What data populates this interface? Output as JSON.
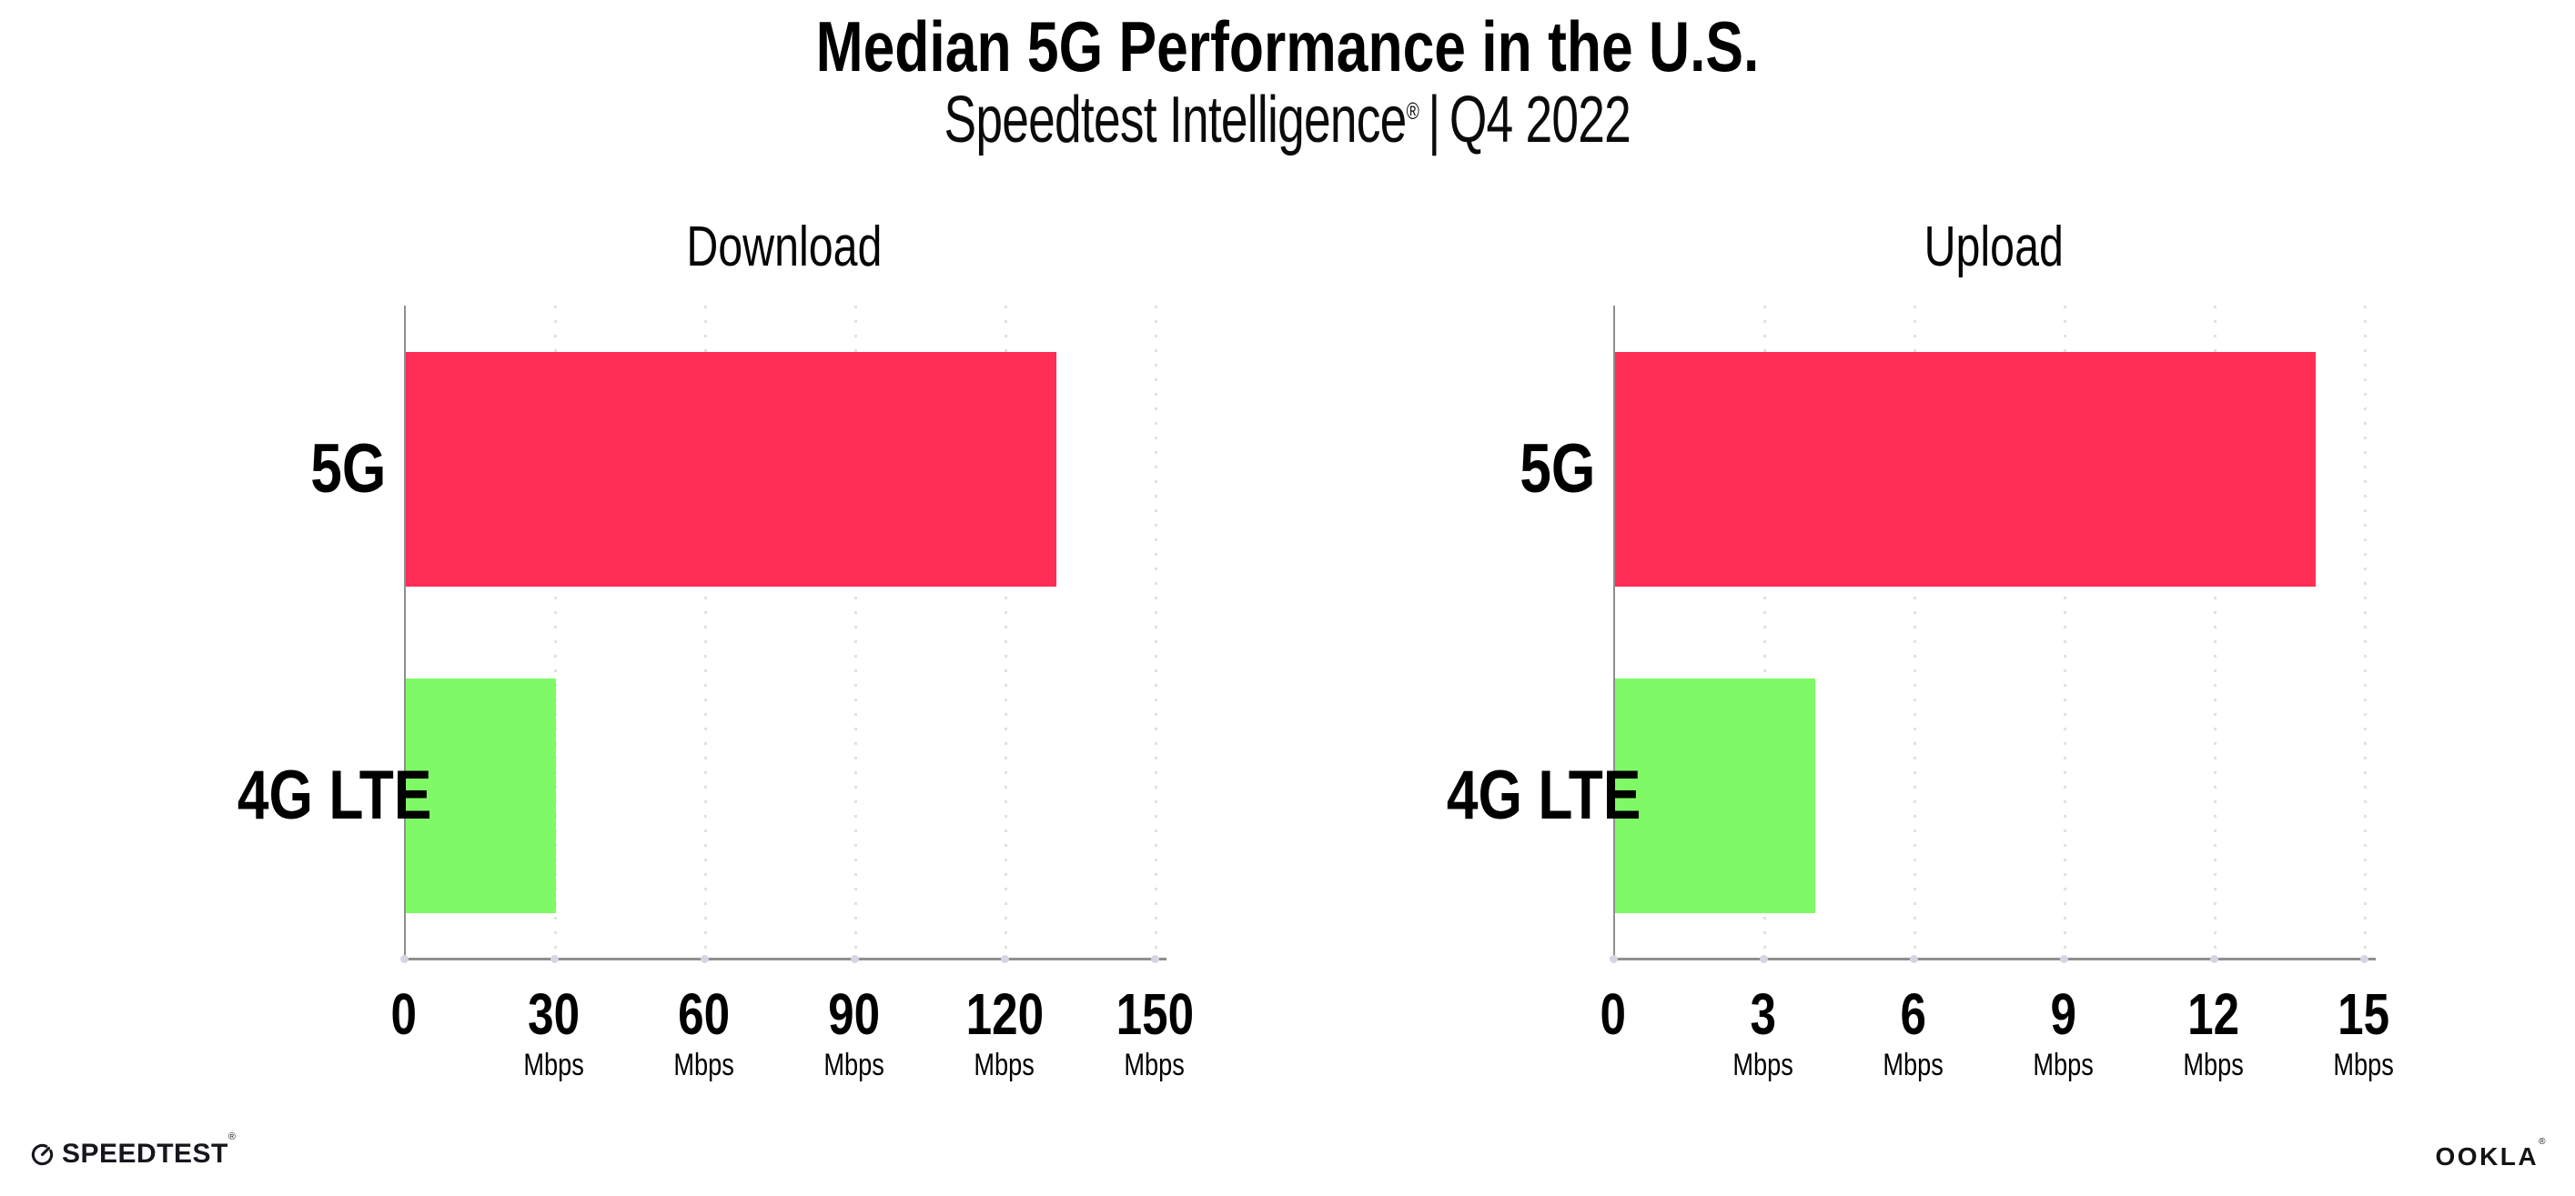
{
  "header": {
    "title": "Median 5G Performance in the U.S.",
    "subtitle_brand": "Speedtest Intelligence",
    "subtitle_reg": "®",
    "subtitle_sep": "|",
    "subtitle_period": "Q4 2022"
  },
  "chart_data": [
    {
      "type": "bar",
      "orientation": "horizontal",
      "title": "Download",
      "categories": [
        "5G",
        "4G LTE"
      ],
      "values": [
        130,
        30
      ],
      "unit": "Mbps",
      "xlim": [
        0,
        150
      ],
      "xticks": [
        0,
        30,
        60,
        90,
        120,
        150
      ],
      "grid": "dotted-vertical-gridlines",
      "legend": "none",
      "bar_colors": [
        "#ff2e56",
        "#7ffa66"
      ]
    },
    {
      "type": "bar",
      "orientation": "horizontal",
      "title": "Upload",
      "categories": [
        "5G",
        "4G LTE"
      ],
      "values": [
        14,
        4
      ],
      "unit": "Mbps",
      "xlim": [
        0,
        15
      ],
      "xticks": [
        0,
        3,
        6,
        9,
        12,
        15
      ],
      "grid": "dotted-vertical-gridlines",
      "legend": "none",
      "bar_colors": [
        "#ff2e56",
        "#7ffa66"
      ]
    }
  ],
  "footer": {
    "speedtest_label": "SPEEDTEST",
    "speedtest_reg": "®",
    "ookla_label": "OOKLA",
    "ookla_reg": "®"
  },
  "colors": {
    "bar_5g": "#ff2e56",
    "bar_4g_lte": "#7ffa66",
    "axis": "#8f8f8f",
    "gridline": "#dfe0ec",
    "text": "#000000"
  }
}
